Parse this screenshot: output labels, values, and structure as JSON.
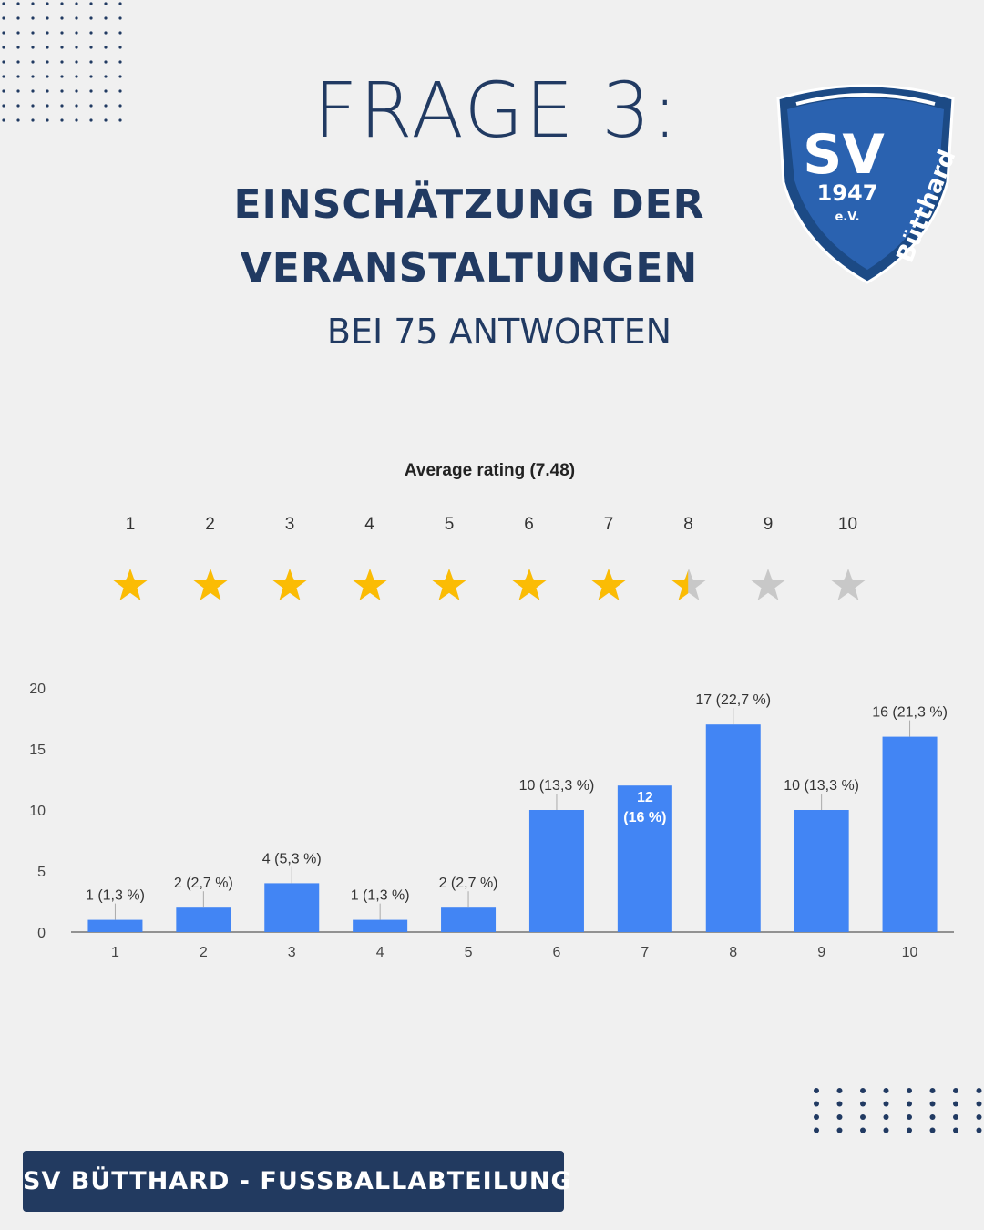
{
  "header": {
    "title": "FRAGE 3:",
    "subtitle_line1": "EINSCHÄTZUNG DER",
    "subtitle_line2": "VERANSTALTUNGEN",
    "responses": "BEI 75 ANTWORTEN"
  },
  "logo": {
    "text_main": "SV",
    "year": "1947",
    "suffix": "e.V.",
    "name": "Bütthard",
    "color_dark": "#1c4a85",
    "color_mid": "#2a62b0"
  },
  "rating": {
    "label": "Average rating (7.48)",
    "value": 7.48,
    "max": 10,
    "numbers": [
      "1",
      "2",
      "3",
      "4",
      "5",
      "6",
      "7",
      "8",
      "9",
      "10"
    ],
    "star_color": "#fbbc04",
    "empty_color": "#c8c8c8"
  },
  "chart_data": {
    "type": "bar",
    "categories": [
      "1",
      "2",
      "3",
      "4",
      "5",
      "6",
      "7",
      "8",
      "9",
      "10"
    ],
    "values": [
      1,
      2,
      4,
      1,
      2,
      10,
      12,
      17,
      10,
      16
    ],
    "data_labels": [
      "1 (1,3 %)",
      "2 (2,7 %)",
      "4 (5,3 %)",
      "1 (1,3 %)",
      "2 (2,7 %)",
      "10 (13,3 %)",
      "12 (16 %)",
      "17 (22,7 %)",
      "10 (13,3 %)",
      "16 (21,3 %)"
    ],
    "inside_label_index": 6,
    "yticks": [
      "0",
      "5",
      "10",
      "15",
      "20"
    ],
    "ylim": [
      0,
      20
    ],
    "bar_color": "#4285f4",
    "grid": false,
    "title": "",
    "xlabel": "",
    "ylabel": ""
  },
  "footer": {
    "label": "SV BÜTTHARD - FUSSBALLABTEILUNG"
  }
}
